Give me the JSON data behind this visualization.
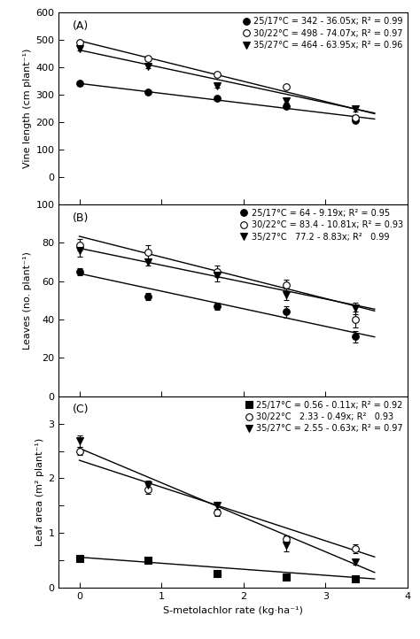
{
  "x_rates": [
    0,
    0.84,
    1.68,
    2.52,
    3.36
  ],
  "panel_A": {
    "label": "(A)",
    "ylabel": "Vine length (cm plant⁻¹)",
    "ylim": [
      -100,
      600
    ],
    "yticks": [
      -100,
      0,
      100,
      200,
      300,
      400,
      500,
      600
    ],
    "ytick_labels": [
      "",
      "0",
      "100",
      "200",
      "300",
      "400",
      "500",
      "600"
    ],
    "series": [
      {
        "label": "25/17°C = 342 - 36.05x; R² = 0.99",
        "intercept": 342,
        "slope": -36.05,
        "marker": "o",
        "filled": true,
        "y": [
          342,
          309,
          288,
          260,
          208
        ],
        "yerr": [
          8,
          5,
          5,
          6,
          8
        ]
      },
      {
        "label": "30/22°C = 498 - 74.07x; R² = 0.97",
        "intercept": 498,
        "slope": -74.07,
        "marker": "o",
        "filled": false,
        "y": [
          490,
          432,
          375,
          330,
          218
        ],
        "yerr": [
          8,
          7,
          7,
          8,
          9
        ]
      },
      {
        "label": "35/27°C = 464 - 63.95x; R² = 0.96",
        "intercept": 464,
        "slope": -63.95,
        "marker": "v",
        "filled": true,
        "y": [
          468,
          403,
          332,
          278,
          248
        ],
        "yerr": [
          7,
          6,
          6,
          7,
          8
        ]
      }
    ]
  },
  "panel_B": {
    "label": "(B)",
    "ylabel": "Leaves (no. plant⁻¹)",
    "ylim": [
      0,
      100
    ],
    "yticks": [
      0,
      20,
      40,
      60,
      80,
      100
    ],
    "ytick_labels": [
      "0",
      "20",
      "40",
      "60",
      "80",
      "100"
    ],
    "series": [
      {
        "label": "25/17°C = 64 - 9.19x; R² = 0.95",
        "intercept": 64,
        "slope": -9.19,
        "marker": "o",
        "filled": true,
        "y": [
          65,
          52,
          47,
          44,
          31
        ],
        "yerr": [
          2,
          2,
          2,
          3,
          3
        ]
      },
      {
        "label": "30/22°C = 83.4 - 10.81x; R² = 0.93",
        "intercept": 83.4,
        "slope": -10.81,
        "marker": "o",
        "filled": false,
        "y": [
          79,
          75,
          65,
          58,
          40
        ],
        "yerr": [
          3,
          4,
          3,
          3,
          4
        ]
      },
      {
        "label": "35/27°C   77.2 - 8.83x; R²   0.99",
        "intercept": 77.2,
        "slope": -8.83,
        "marker": "v",
        "filled": true,
        "y": [
          76,
          70,
          63,
          53,
          46
        ],
        "yerr": [
          3,
          2,
          3,
          3,
          3
        ]
      }
    ]
  },
  "panel_C": {
    "label": "(C)",
    "ylabel": "Leaf area (m² plant⁻¹)",
    "ylim": [
      0,
      3.5
    ],
    "yticks": [
      0,
      0.5,
      1.0,
      1.5,
      2.0,
      2.5,
      3.0,
      3.5
    ],
    "ytick_labels": [
      "0",
      "",
      "1",
      "",
      "2",
      "",
      "3",
      ""
    ],
    "series": [
      {
        "label": "25/17°C = 0.56 - 0.11x; R² = 0.92",
        "intercept": 0.56,
        "slope": -0.11,
        "marker": "s",
        "filled": true,
        "y": [
          0.53,
          0.5,
          0.26,
          0.2,
          0.16
        ],
        "yerr": [
          0.03,
          0.03,
          0.02,
          0.02,
          0.02
        ]
      },
      {
        "label": "30/22°C   2.33 - 0.49x; R²   0.93",
        "intercept": 2.33,
        "slope": -0.49,
        "marker": "o",
        "filled": false,
        "y": [
          2.5,
          1.8,
          1.38,
          0.9,
          0.72
        ],
        "yerr": [
          0.07,
          0.08,
          0.07,
          0.06,
          0.08
        ]
      },
      {
        "label": "35/27°C = 2.55 - 0.63x; R² = 0.97",
        "intercept": 2.55,
        "slope": -0.63,
        "marker": "v",
        "filled": true,
        "y": [
          2.68,
          1.88,
          1.5,
          0.78,
          0.47
        ],
        "yerr": [
          0.1,
          0.08,
          0.07,
          0.12,
          0.05
        ]
      }
    ]
  },
  "xlabel": "S-metolachlor rate (kg·ha⁻¹)",
  "xlim": [
    -0.25,
    4.0
  ],
  "xticks": [
    0,
    1,
    2,
    3,
    4
  ],
  "background_color": "#ffffff",
  "line_color": "#000000",
  "marker_color_filled": "#000000",
  "marker_color_open": "#ffffff",
  "marker_size": 5.5,
  "line_width": 1.0,
  "font_size": 8,
  "legend_font_size": 7
}
